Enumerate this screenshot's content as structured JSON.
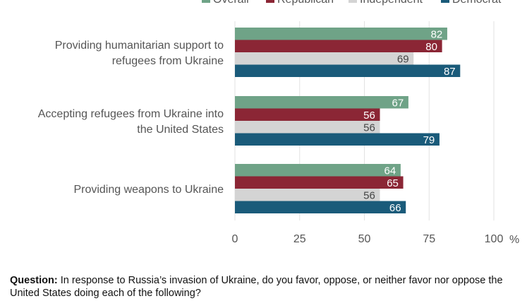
{
  "chart_data": {
    "type": "bar",
    "orientation": "horizontal",
    "categories": [
      [
        "Providing humanitarian support to",
        "refugees from Ukraine"
      ],
      [
        "Accepting refugees from Ukraine into",
        "the United States"
      ],
      [
        "Providing weapons to Ukraine"
      ]
    ],
    "series": [
      {
        "name": "Overall",
        "color": "#6fa387",
        "values": [
          82,
          67,
          64
        ]
      },
      {
        "name": "Republican",
        "color": "#8b2635",
        "values": [
          80,
          56,
          65
        ]
      },
      {
        "name": "Independent",
        "color": "#d4d4d4",
        "values": [
          69,
          56,
          56
        ]
      },
      {
        "name": "Democrat",
        "color": "#1a5b7a",
        "values": [
          87,
          79,
          66
        ]
      }
    ],
    "xlim": [
      0,
      100
    ],
    "xticks": [
      "0",
      "25",
      "50",
      "75",
      "100"
    ],
    "x_unit": "%",
    "grid": true,
    "legend": "top"
  },
  "question": {
    "label": "Question:",
    "text": " In response to Russia’s invasion of Ukraine, do you favor, oppose, or neither favor nor oppose the United States doing each of the following?"
  }
}
